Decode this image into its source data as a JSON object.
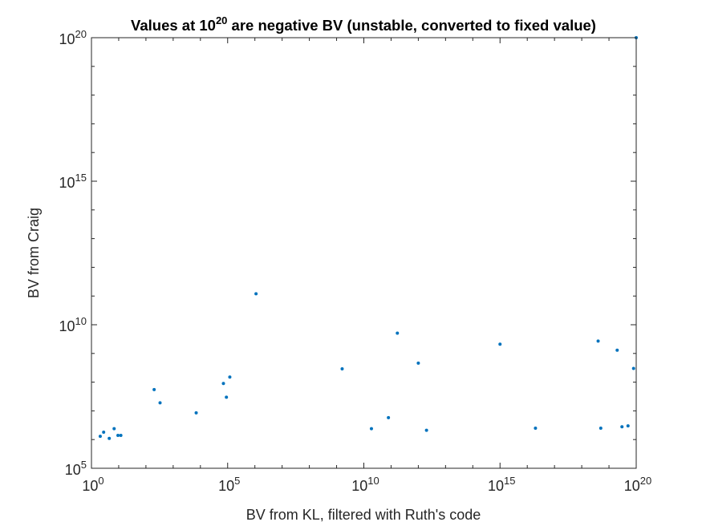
{
  "chart_data": {
    "type": "scatter",
    "title_main": "Values at 10",
    "title_exp": "20",
    "title_rest": " are negative BV (unstable, converted to fixed value)",
    "xlabel": "BV from KL, filtered with Ruth's code",
    "ylabel": "BV from Craig",
    "xscale": "log",
    "yscale": "log",
    "xlim": [
      1,
      1e+20
    ],
    "ylim": [
      100000.0,
      1e+20
    ],
    "grid": false,
    "box": true,
    "x_ticks": [
      {
        "base": "10",
        "exp": "0",
        "value": 1
      },
      {
        "base": "10",
        "exp": "5",
        "value": 100000.0
      },
      {
        "base": "10",
        "exp": "10",
        "value": 10000000000.0
      },
      {
        "base": "10",
        "exp": "15",
        "value": 1000000000000000.0
      },
      {
        "base": "10",
        "exp": "20",
        "value": 1e+20
      }
    ],
    "y_ticks": [
      {
        "base": "10",
        "exp": "5",
        "value": 100000.0
      },
      {
        "base": "10",
        "exp": "10",
        "value": 10000000000.0
      },
      {
        "base": "10",
        "exp": "15",
        "value": 1000000000000000.0
      },
      {
        "base": "10",
        "exp": "20",
        "value": 1e+20
      }
    ],
    "marker_color": "#0072BD",
    "axis_color": "#262626",
    "series": [
      {
        "points": [
          [
            2.1,
            1300000.0
          ],
          [
            2.8,
            1800000.0
          ],
          [
            4.5,
            1100000.0
          ],
          [
            6.8,
            2400000.0
          ],
          [
            9.4,
            1400000.0
          ],
          [
            12,
            1400000.0
          ],
          [
            200,
            55000000.0
          ],
          [
            330,
            19000000.0
          ],
          [
            7000,
            8500000.0
          ],
          [
            70000.0,
            90000000.0
          ],
          [
            90000.0,
            30000000.0
          ],
          [
            120000.0,
            150000000.0
          ],
          [
            1100000.0,
            120000000000.0
          ],
          [
            1600000000.0,
            290000000.0
          ],
          [
            19000000000.0,
            2400000.0
          ],
          [
            80000000000.0,
            5800000.0
          ],
          [
            170000000000.0,
            5100000000.0
          ],
          [
            1e+20,
            1e+20
          ],
          [
            5e+19,
            3000000.0
          ],
          [
            8e+19,
            300000000.0
          ],
          [
            3e+19,
            2800000.0
          ],
          [
            2e+16,
            2500000.0
          ],
          [
            5e+18,
            2500000.0
          ],
          [
            2e+19,
            1300000000.0
          ],
          [
            4e+18,
            2700000000.0
          ],
          [
            1000000000000000.0,
            2100000000.0
          ],
          [
            1000000000000.0,
            460000000.0
          ],
          [
            2000000000000.0,
            2100000.0
          ]
        ]
      }
    ]
  }
}
